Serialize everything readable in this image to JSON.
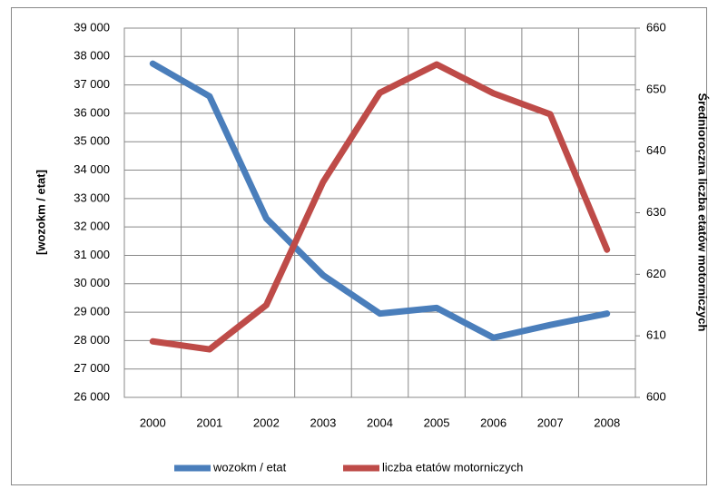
{
  "chart_data": {
    "type": "line",
    "ylabel": "[wozokm / etat]",
    "y2label": "Średnioroczna liczba etatów motorniczych",
    "categories": [
      "2000",
      "2001",
      "2002",
      "2003",
      "2004",
      "2005",
      "2006",
      "2007",
      "2008"
    ],
    "series": [
      {
        "name": "wozokm / etat",
        "color": "#4a7ebb",
        "values": [
          37750,
          36600,
          32300,
          30300,
          28950,
          29150,
          28100,
          28550,
          28950
        ]
      },
      {
        "name": "liczba etatów  motorniczych",
        "color": "#be4b48",
        "axis": "y2",
        "values": [
          609.1,
          607.8,
          615,
          635,
          649.5,
          654.1,
          649.4,
          646,
          624
        ]
      }
    ],
    "ylim": [
      26000,
      39000
    ],
    "yticks": [
      {
        "value": 26000,
        "label": "26 000"
      },
      {
        "value": 27000,
        "label": "27 000"
      },
      {
        "value": 28000,
        "label": "28 000"
      },
      {
        "value": 29000,
        "label": "29 000"
      },
      {
        "value": 30000,
        "label": "30 000"
      },
      {
        "value": 31000,
        "label": "31 000"
      },
      {
        "value": 32000,
        "label": "32 000"
      },
      {
        "value": 33000,
        "label": "33 000"
      },
      {
        "value": 34000,
        "label": "34 000"
      },
      {
        "value": 35000,
        "label": "35 000"
      },
      {
        "value": 36000,
        "label": "36 000"
      },
      {
        "value": 37000,
        "label": "37 000"
      },
      {
        "value": 38000,
        "label": "38 000"
      },
      {
        "value": 39000,
        "label": "39 000"
      }
    ],
    "y2lim": [
      600,
      660
    ],
    "y2ticks": [
      600,
      610,
      620,
      630,
      640,
      650,
      660
    ],
    "grid": true,
    "legend": "bottom"
  }
}
